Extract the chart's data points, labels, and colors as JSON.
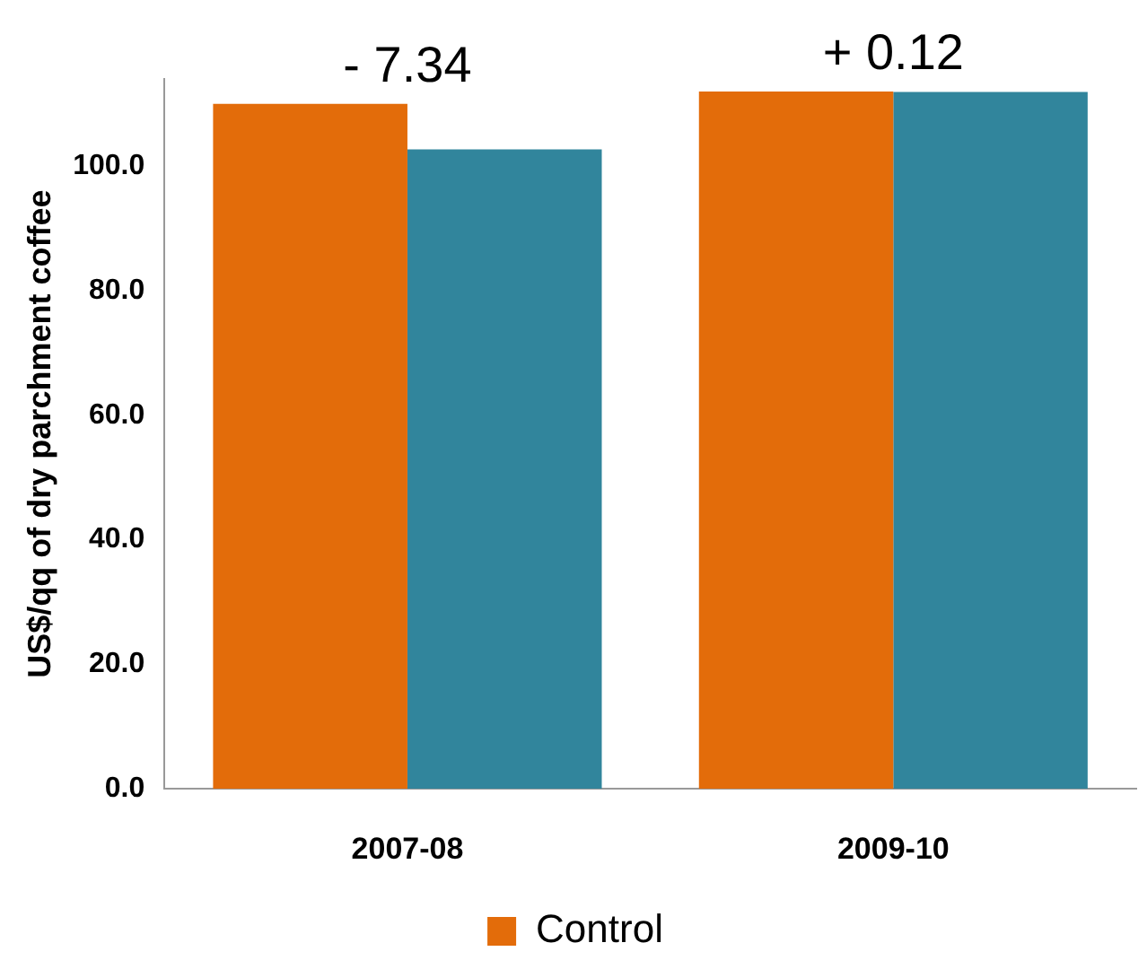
{
  "chart_data": {
    "type": "bar",
    "ylabel": "US$/qq of dry parchment coffee",
    "categories": [
      "2007-08",
      "2009-10"
    ],
    "series": [
      {
        "name": "Control",
        "color": "#e36c0a",
        "values": [
          110.0,
          112.0
        ]
      },
      {
        "color": "#31859c",
        "values": [
          102.7,
          111.9
        ]
      }
    ],
    "ylim": [
      0,
      114
    ],
    "yticks": [
      {
        "value": 0,
        "label": "0.0"
      },
      {
        "value": 20,
        "label": "20.0"
      },
      {
        "value": 40,
        "label": "40.0"
      },
      {
        "value": 60,
        "label": "60.0"
      },
      {
        "value": 80,
        "label": "80.0"
      },
      {
        "value": 100,
        "label": "100.0"
      }
    ],
    "annotations": [
      {
        "text": "- 7.34",
        "x": "2007-08",
        "y": 110.0
      },
      {
        "text": "+ 0.12",
        "x": "2009-10",
        "y": 112.0
      }
    ],
    "grid": false,
    "legend": "bottom"
  }
}
